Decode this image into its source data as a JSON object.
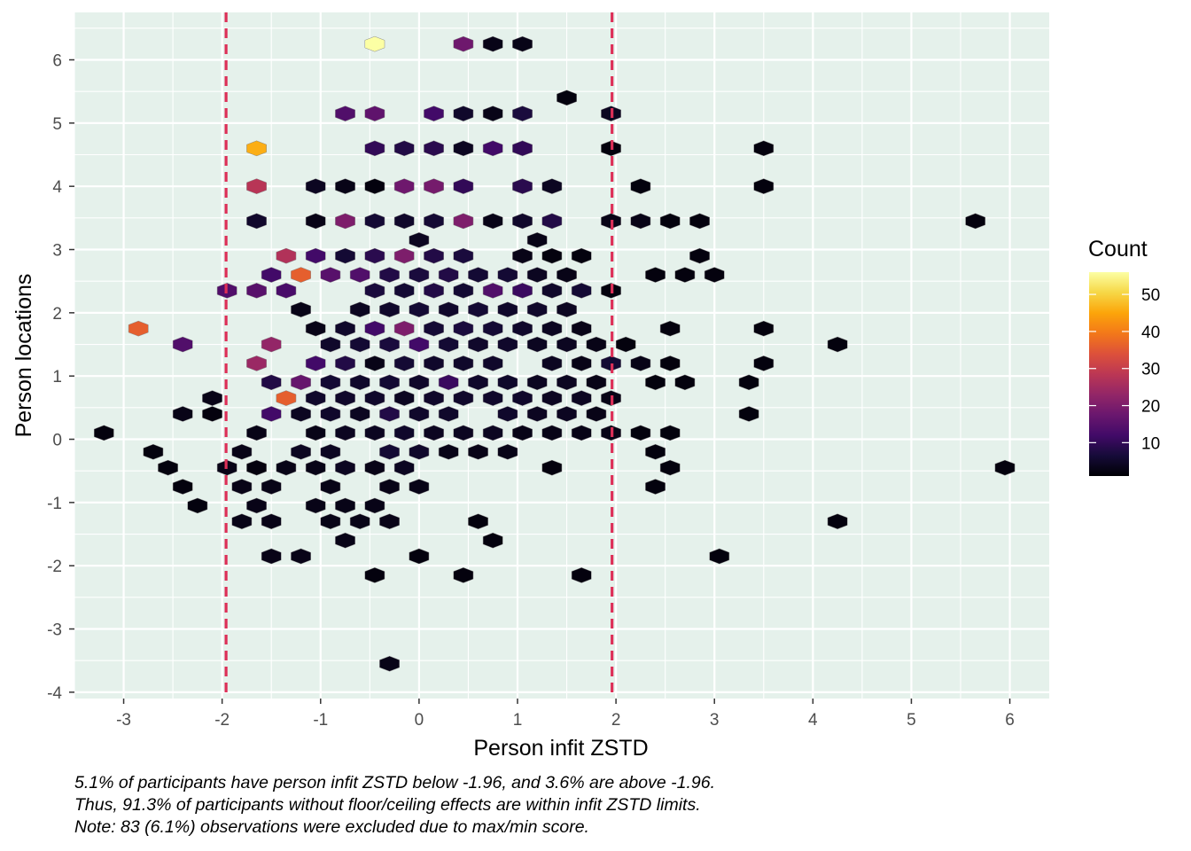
{
  "chart_data": {
    "type": "hexbin",
    "xlabel": "Person infit ZSTD",
    "ylabel": "Person locations",
    "xlim": [
      -3.5,
      6.4
    ],
    "ylim": [
      -4.1,
      6.75
    ],
    "x_ticks": [
      "-3",
      "-2",
      "-1",
      "0",
      "1",
      "2",
      "3",
      "4",
      "5",
      "6"
    ],
    "y_ticks": [
      "-4",
      "-3",
      "-2",
      "-1",
      "0",
      "1",
      "2",
      "3",
      "4",
      "5",
      "6"
    ],
    "grid": true,
    "reference_lines": {
      "x": [
        -1.96,
        1.96
      ],
      "style": "dashed",
      "color": "#dd2f58"
    },
    "legend": {
      "title": "Count",
      "position": "right",
      "colormap": "inferno",
      "range": [
        1,
        56
      ],
      "breaks": [
        "10",
        "20",
        "30",
        "40",
        "50"
      ]
    },
    "hex_size": [
      0.2,
      0.24
    ],
    "bins": [
      {
        "x": -0.45,
        "y": 6.25,
        "count": 56
      },
      {
        "x": 0.45,
        "y": 6.25,
        "count": 18
      },
      {
        "x": 0.75,
        "y": 6.25,
        "count": 3
      },
      {
        "x": 1.05,
        "y": 6.25,
        "count": 3
      },
      {
        "x": 1.5,
        "y": 5.4,
        "count": 2
      },
      {
        "x": -0.75,
        "y": 5.15,
        "count": 14
      },
      {
        "x": -0.45,
        "y": 5.15,
        "count": 16
      },
      {
        "x": 0.15,
        "y": 5.15,
        "count": 12
      },
      {
        "x": 0.45,
        "y": 5.15,
        "count": 5
      },
      {
        "x": 0.75,
        "y": 5.15,
        "count": 3
      },
      {
        "x": 1.05,
        "y": 5.15,
        "count": 7
      },
      {
        "x": 1.95,
        "y": 5.15,
        "count": 4
      },
      {
        "x": -1.65,
        "y": 4.6,
        "count": 46
      },
      {
        "x": -0.45,
        "y": 4.6,
        "count": 10
      },
      {
        "x": -0.15,
        "y": 4.6,
        "count": 8
      },
      {
        "x": 0.15,
        "y": 4.6,
        "count": 9
      },
      {
        "x": 0.45,
        "y": 4.6,
        "count": 4
      },
      {
        "x": 0.75,
        "y": 4.6,
        "count": 12
      },
      {
        "x": 1.05,
        "y": 4.6,
        "count": 10
      },
      {
        "x": 1.95,
        "y": 4.6,
        "count": 2
      },
      {
        "x": 3.5,
        "y": 4.6,
        "count": 2
      },
      {
        "x": -1.65,
        "y": 4.0,
        "count": 28
      },
      {
        "x": -1.05,
        "y": 4.0,
        "count": 4
      },
      {
        "x": -0.75,
        "y": 4.0,
        "count": 3
      },
      {
        "x": -0.45,
        "y": 4.0,
        "count": 2
      },
      {
        "x": -0.15,
        "y": 4.0,
        "count": 18
      },
      {
        "x": 0.15,
        "y": 4.0,
        "count": 19
      },
      {
        "x": 0.45,
        "y": 4.0,
        "count": 10
      },
      {
        "x": 1.05,
        "y": 4.0,
        "count": 9
      },
      {
        "x": 1.35,
        "y": 4.0,
        "count": 4
      },
      {
        "x": 2.25,
        "y": 4.0,
        "count": 2
      },
      {
        "x": 3.5,
        "y": 4.0,
        "count": 2
      },
      {
        "x": -1.65,
        "y": 3.45,
        "count": 5
      },
      {
        "x": -1.05,
        "y": 3.45,
        "count": 3
      },
      {
        "x": -0.75,
        "y": 3.45,
        "count": 20
      },
      {
        "x": -0.45,
        "y": 3.45,
        "count": 6
      },
      {
        "x": -0.15,
        "y": 3.45,
        "count": 5
      },
      {
        "x": 0.15,
        "y": 3.45,
        "count": 6
      },
      {
        "x": 0.45,
        "y": 3.45,
        "count": 20
      },
      {
        "x": 0.75,
        "y": 3.45,
        "count": 3
      },
      {
        "x": 1.05,
        "y": 3.45,
        "count": 5
      },
      {
        "x": 1.35,
        "y": 3.45,
        "count": 8
      },
      {
        "x": 1.95,
        "y": 3.45,
        "count": 3
      },
      {
        "x": 2.25,
        "y": 3.45,
        "count": 3
      },
      {
        "x": 2.55,
        "y": 3.45,
        "count": 2
      },
      {
        "x": 2.85,
        "y": 3.45,
        "count": 2
      },
      {
        "x": 5.65,
        "y": 3.45,
        "count": 2
      },
      {
        "x": 0.0,
        "y": 3.15,
        "count": 4
      },
      {
        "x": 1.2,
        "y": 3.15,
        "count": 3
      },
      {
        "x": -1.35,
        "y": 2.9,
        "count": 27
      },
      {
        "x": -1.05,
        "y": 2.9,
        "count": 12
      },
      {
        "x": -0.75,
        "y": 2.9,
        "count": 6
      },
      {
        "x": -0.45,
        "y": 2.9,
        "count": 9
      },
      {
        "x": -0.15,
        "y": 2.9,
        "count": 20
      },
      {
        "x": 0.15,
        "y": 2.9,
        "count": 8
      },
      {
        "x": 0.45,
        "y": 2.9,
        "count": 7
      },
      {
        "x": 1.05,
        "y": 2.9,
        "count": 3
      },
      {
        "x": 1.35,
        "y": 2.9,
        "count": 2
      },
      {
        "x": 1.65,
        "y": 2.9,
        "count": 2
      },
      {
        "x": 2.85,
        "y": 2.9,
        "count": 2
      },
      {
        "x": -1.5,
        "y": 2.6,
        "count": 12
      },
      {
        "x": -1.2,
        "y": 2.6,
        "count": 36
      },
      {
        "x": -0.9,
        "y": 2.6,
        "count": 15
      },
      {
        "x": -0.6,
        "y": 2.6,
        "count": 14
      },
      {
        "x": -0.3,
        "y": 2.6,
        "count": 8
      },
      {
        "x": 0.0,
        "y": 2.6,
        "count": 7
      },
      {
        "x": 0.3,
        "y": 2.6,
        "count": 8
      },
      {
        "x": 0.6,
        "y": 2.6,
        "count": 6
      },
      {
        "x": 0.9,
        "y": 2.6,
        "count": 6
      },
      {
        "x": 1.2,
        "y": 2.6,
        "count": 4
      },
      {
        "x": 1.5,
        "y": 2.6,
        "count": 3
      },
      {
        "x": 2.4,
        "y": 2.6,
        "count": 2
      },
      {
        "x": 2.7,
        "y": 2.6,
        "count": 2
      },
      {
        "x": 3.0,
        "y": 2.6,
        "count": 2
      },
      {
        "x": -1.95,
        "y": 2.35,
        "count": 14
      },
      {
        "x": -1.65,
        "y": 2.35,
        "count": 15
      },
      {
        "x": -1.35,
        "y": 2.35,
        "count": 13
      },
      {
        "x": -0.45,
        "y": 2.35,
        "count": 7
      },
      {
        "x": -0.15,
        "y": 2.35,
        "count": 6
      },
      {
        "x": 0.15,
        "y": 2.35,
        "count": 8
      },
      {
        "x": 0.45,
        "y": 2.35,
        "count": 6
      },
      {
        "x": 0.75,
        "y": 2.35,
        "count": 14
      },
      {
        "x": 1.05,
        "y": 2.35,
        "count": 11
      },
      {
        "x": 1.35,
        "y": 2.35,
        "count": 5
      },
      {
        "x": 1.65,
        "y": 2.35,
        "count": 6
      },
      {
        "x": 1.95,
        "y": 2.35,
        "count": 2
      },
      {
        "x": -1.2,
        "y": 2.05,
        "count": 3
      },
      {
        "x": -0.6,
        "y": 2.05,
        "count": 4
      },
      {
        "x": -0.3,
        "y": 2.05,
        "count": 5
      },
      {
        "x": 0.0,
        "y": 2.05,
        "count": 6
      },
      {
        "x": 0.3,
        "y": 2.05,
        "count": 5
      },
      {
        "x": 0.6,
        "y": 2.05,
        "count": 6
      },
      {
        "x": 0.9,
        "y": 2.05,
        "count": 5
      },
      {
        "x": 1.2,
        "y": 2.05,
        "count": 5
      },
      {
        "x": 1.5,
        "y": 2.05,
        "count": 4
      },
      {
        "x": -2.85,
        "y": 1.75,
        "count": 36
      },
      {
        "x": -1.05,
        "y": 1.75,
        "count": 3
      },
      {
        "x": -0.75,
        "y": 1.75,
        "count": 5
      },
      {
        "x": -0.45,
        "y": 1.75,
        "count": 12
      },
      {
        "x": -0.15,
        "y": 1.75,
        "count": 20
      },
      {
        "x": 0.15,
        "y": 1.75,
        "count": 6
      },
      {
        "x": 0.45,
        "y": 1.75,
        "count": 7
      },
      {
        "x": 0.75,
        "y": 1.75,
        "count": 6
      },
      {
        "x": 1.05,
        "y": 1.75,
        "count": 5
      },
      {
        "x": 1.35,
        "y": 1.75,
        "count": 4
      },
      {
        "x": 1.65,
        "y": 1.75,
        "count": 3
      },
      {
        "x": 2.55,
        "y": 1.75,
        "count": 2
      },
      {
        "x": 3.5,
        "y": 1.75,
        "count": 2
      },
      {
        "x": -2.4,
        "y": 1.5,
        "count": 14
      },
      {
        "x": -1.5,
        "y": 1.5,
        "count": 23
      },
      {
        "x": -0.9,
        "y": 1.5,
        "count": 5
      },
      {
        "x": -0.6,
        "y": 1.5,
        "count": 6
      },
      {
        "x": -0.3,
        "y": 1.5,
        "count": 7
      },
      {
        "x": 0.0,
        "y": 1.5,
        "count": 12
      },
      {
        "x": 0.3,
        "y": 1.5,
        "count": 6
      },
      {
        "x": 0.6,
        "y": 1.5,
        "count": 5
      },
      {
        "x": 0.9,
        "y": 1.5,
        "count": 5
      },
      {
        "x": 1.2,
        "y": 1.5,
        "count": 4
      },
      {
        "x": 1.5,
        "y": 1.5,
        "count": 4
      },
      {
        "x": 1.8,
        "y": 1.5,
        "count": 3
      },
      {
        "x": 2.1,
        "y": 1.5,
        "count": 2
      },
      {
        "x": 4.25,
        "y": 1.5,
        "count": 2
      },
      {
        "x": -1.65,
        "y": 1.2,
        "count": 24
      },
      {
        "x": -1.05,
        "y": 1.2,
        "count": 12
      },
      {
        "x": -0.75,
        "y": 1.2,
        "count": 8
      },
      {
        "x": -0.45,
        "y": 1.2,
        "count": 3
      },
      {
        "x": -0.15,
        "y": 1.2,
        "count": 6
      },
      {
        "x": 0.15,
        "y": 1.2,
        "count": 5
      },
      {
        "x": 0.45,
        "y": 1.2,
        "count": 5
      },
      {
        "x": 0.75,
        "y": 1.2,
        "count": 5
      },
      {
        "x": 1.35,
        "y": 1.2,
        "count": 4
      },
      {
        "x": 1.65,
        "y": 1.2,
        "count": 3
      },
      {
        "x": 1.95,
        "y": 1.2,
        "count": 6
      },
      {
        "x": 2.25,
        "y": 1.2,
        "count": 3
      },
      {
        "x": 2.55,
        "y": 1.2,
        "count": 2
      },
      {
        "x": 3.5,
        "y": 1.2,
        "count": 2
      },
      {
        "x": -1.5,
        "y": 0.9,
        "count": 8
      },
      {
        "x": -1.2,
        "y": 0.9,
        "count": 17
      },
      {
        "x": -0.9,
        "y": 0.9,
        "count": 6
      },
      {
        "x": -0.6,
        "y": 0.9,
        "count": 5
      },
      {
        "x": -0.3,
        "y": 0.9,
        "count": 6
      },
      {
        "x": 0.0,
        "y": 0.9,
        "count": 5
      },
      {
        "x": 0.3,
        "y": 0.9,
        "count": 11
      },
      {
        "x": 0.6,
        "y": 0.9,
        "count": 5
      },
      {
        "x": 0.9,
        "y": 0.9,
        "count": 5
      },
      {
        "x": 1.2,
        "y": 0.9,
        "count": 4
      },
      {
        "x": 1.5,
        "y": 0.9,
        "count": 4
      },
      {
        "x": 1.8,
        "y": 0.9,
        "count": 3
      },
      {
        "x": 2.4,
        "y": 0.9,
        "count": 2
      },
      {
        "x": 2.7,
        "y": 0.9,
        "count": 2
      },
      {
        "x": 3.35,
        "y": 0.9,
        "count": 2
      },
      {
        "x": -2.1,
        "y": 0.65,
        "count": 3
      },
      {
        "x": -1.35,
        "y": 0.65,
        "count": 36
      },
      {
        "x": -1.05,
        "y": 0.65,
        "count": 5
      },
      {
        "x": -0.75,
        "y": 0.65,
        "count": 5
      },
      {
        "x": -0.45,
        "y": 0.65,
        "count": 5
      },
      {
        "x": -0.15,
        "y": 0.65,
        "count": 4
      },
      {
        "x": 0.15,
        "y": 0.65,
        "count": 5
      },
      {
        "x": 0.45,
        "y": 0.65,
        "count": 5
      },
      {
        "x": 0.75,
        "y": 0.65,
        "count": 5
      },
      {
        "x": 1.05,
        "y": 0.65,
        "count": 5
      },
      {
        "x": 1.35,
        "y": 0.65,
        "count": 4
      },
      {
        "x": 1.65,
        "y": 0.65,
        "count": 4
      },
      {
        "x": 1.95,
        "y": 0.65,
        "count": 3
      },
      {
        "x": -2.4,
        "y": 0.4,
        "count": 3
      },
      {
        "x": -2.1,
        "y": 0.4,
        "count": 2
      },
      {
        "x": -1.5,
        "y": 0.4,
        "count": 12
      },
      {
        "x": -1.2,
        "y": 0.4,
        "count": 4
      },
      {
        "x": -0.9,
        "y": 0.4,
        "count": 5
      },
      {
        "x": -0.6,
        "y": 0.4,
        "count": 4
      },
      {
        "x": -0.3,
        "y": 0.4,
        "count": 8
      },
      {
        "x": 0.0,
        "y": 0.4,
        "count": 5
      },
      {
        "x": 0.3,
        "y": 0.4,
        "count": 5
      },
      {
        "x": 0.9,
        "y": 0.4,
        "count": 5
      },
      {
        "x": 1.2,
        "y": 0.4,
        "count": 4
      },
      {
        "x": 1.5,
        "y": 0.4,
        "count": 4
      },
      {
        "x": 1.8,
        "y": 0.4,
        "count": 3
      },
      {
        "x": 3.35,
        "y": 0.4,
        "count": 2
      },
      {
        "x": -3.2,
        "y": 0.1,
        "count": 2
      },
      {
        "x": -1.65,
        "y": 0.1,
        "count": 3
      },
      {
        "x": -1.05,
        "y": 0.1,
        "count": 3
      },
      {
        "x": -0.75,
        "y": 0.1,
        "count": 4
      },
      {
        "x": -0.45,
        "y": 0.1,
        "count": 4
      },
      {
        "x": -0.15,
        "y": 0.1,
        "count": 5
      },
      {
        "x": 0.15,
        "y": 0.1,
        "count": 4
      },
      {
        "x": 0.45,
        "y": 0.1,
        "count": 4
      },
      {
        "x": 0.75,
        "y": 0.1,
        "count": 4
      },
      {
        "x": 1.05,
        "y": 0.1,
        "count": 3
      },
      {
        "x": 1.35,
        "y": 0.1,
        "count": 3
      },
      {
        "x": 1.65,
        "y": 0.1,
        "count": 3
      },
      {
        "x": 1.95,
        "y": 0.1,
        "count": 3
      },
      {
        "x": 2.25,
        "y": 0.1,
        "count": 2
      },
      {
        "x": 2.55,
        "y": 0.1,
        "count": 2
      },
      {
        "x": -2.7,
        "y": -0.2,
        "count": 2
      },
      {
        "x": -1.8,
        "y": -0.2,
        "count": 3
      },
      {
        "x": -1.2,
        "y": -0.2,
        "count": 4
      },
      {
        "x": -0.9,
        "y": -0.2,
        "count": 4
      },
      {
        "x": -0.3,
        "y": -0.2,
        "count": 6
      },
      {
        "x": 0.0,
        "y": -0.2,
        "count": 5
      },
      {
        "x": 0.3,
        "y": -0.2,
        "count": 3
      },
      {
        "x": 0.6,
        "y": -0.2,
        "count": 3
      },
      {
        "x": 0.9,
        "y": -0.2,
        "count": 3
      },
      {
        "x": 2.4,
        "y": -0.2,
        "count": 2
      },
      {
        "x": -2.55,
        "y": -0.45,
        "count": 2
      },
      {
        "x": -1.95,
        "y": -0.45,
        "count": 3
      },
      {
        "x": -1.65,
        "y": -0.45,
        "count": 2
      },
      {
        "x": -1.35,
        "y": -0.45,
        "count": 3
      },
      {
        "x": -1.05,
        "y": -0.45,
        "count": 3
      },
      {
        "x": -0.75,
        "y": -0.45,
        "count": 4
      },
      {
        "x": -0.45,
        "y": -0.45,
        "count": 3
      },
      {
        "x": -0.15,
        "y": -0.45,
        "count": 4
      },
      {
        "x": 1.35,
        "y": -0.45,
        "count": 2
      },
      {
        "x": 2.55,
        "y": -0.45,
        "count": 2
      },
      {
        "x": 5.95,
        "y": -0.45,
        "count": 2
      },
      {
        "x": -2.4,
        "y": -0.75,
        "count": 2
      },
      {
        "x": -1.8,
        "y": -0.75,
        "count": 3
      },
      {
        "x": -1.5,
        "y": -0.75,
        "count": 3
      },
      {
        "x": -0.9,
        "y": -0.75,
        "count": 3
      },
      {
        "x": -0.3,
        "y": -0.75,
        "count": 3
      },
      {
        "x": 0.0,
        "y": -0.75,
        "count": 3
      },
      {
        "x": 2.4,
        "y": -0.75,
        "count": 2
      },
      {
        "x": -2.25,
        "y": -1.05,
        "count": 2
      },
      {
        "x": -1.65,
        "y": -1.05,
        "count": 3
      },
      {
        "x": -1.05,
        "y": -1.05,
        "count": 3
      },
      {
        "x": -0.75,
        "y": -1.05,
        "count": 3
      },
      {
        "x": -0.45,
        "y": -1.05,
        "count": 3
      },
      {
        "x": -1.8,
        "y": -1.3,
        "count": 3
      },
      {
        "x": -1.5,
        "y": -1.3,
        "count": 3
      },
      {
        "x": -0.9,
        "y": -1.3,
        "count": 3
      },
      {
        "x": -0.6,
        "y": -1.3,
        "count": 3
      },
      {
        "x": -0.3,
        "y": -1.3,
        "count": 3
      },
      {
        "x": 0.6,
        "y": -1.3,
        "count": 2
      },
      {
        "x": 4.25,
        "y": -1.3,
        "count": 2
      },
      {
        "x": -0.75,
        "y": -1.6,
        "count": 3
      },
      {
        "x": 0.75,
        "y": -1.6,
        "count": 2
      },
      {
        "x": -1.5,
        "y": -1.85,
        "count": 3
      },
      {
        "x": -1.2,
        "y": -1.85,
        "count": 3
      },
      {
        "x": 0.0,
        "y": -1.85,
        "count": 2
      },
      {
        "x": 3.05,
        "y": -1.85,
        "count": 2
      },
      {
        "x": -0.45,
        "y": -2.15,
        "count": 2
      },
      {
        "x": 0.45,
        "y": -2.15,
        "count": 2
      },
      {
        "x": 1.65,
        "y": -2.15,
        "count": 2
      },
      {
        "x": -0.3,
        "y": -3.55,
        "count": 3
      }
    ],
    "caption": [
      "5.1% of participants have person infit ZSTD below -1.96, and 3.6% are above -1.96.",
      "Thus, 91.3% of participants without floor/ceiling effects are within infit ZSTD limits.",
      "Note: 83 (6.1%) observations were excluded due to max/min score."
    ]
  },
  "colors": {
    "panel_background": "#e5f1eb",
    "grid": "#ffffff",
    "reference_line": "#dd2f58"
  }
}
